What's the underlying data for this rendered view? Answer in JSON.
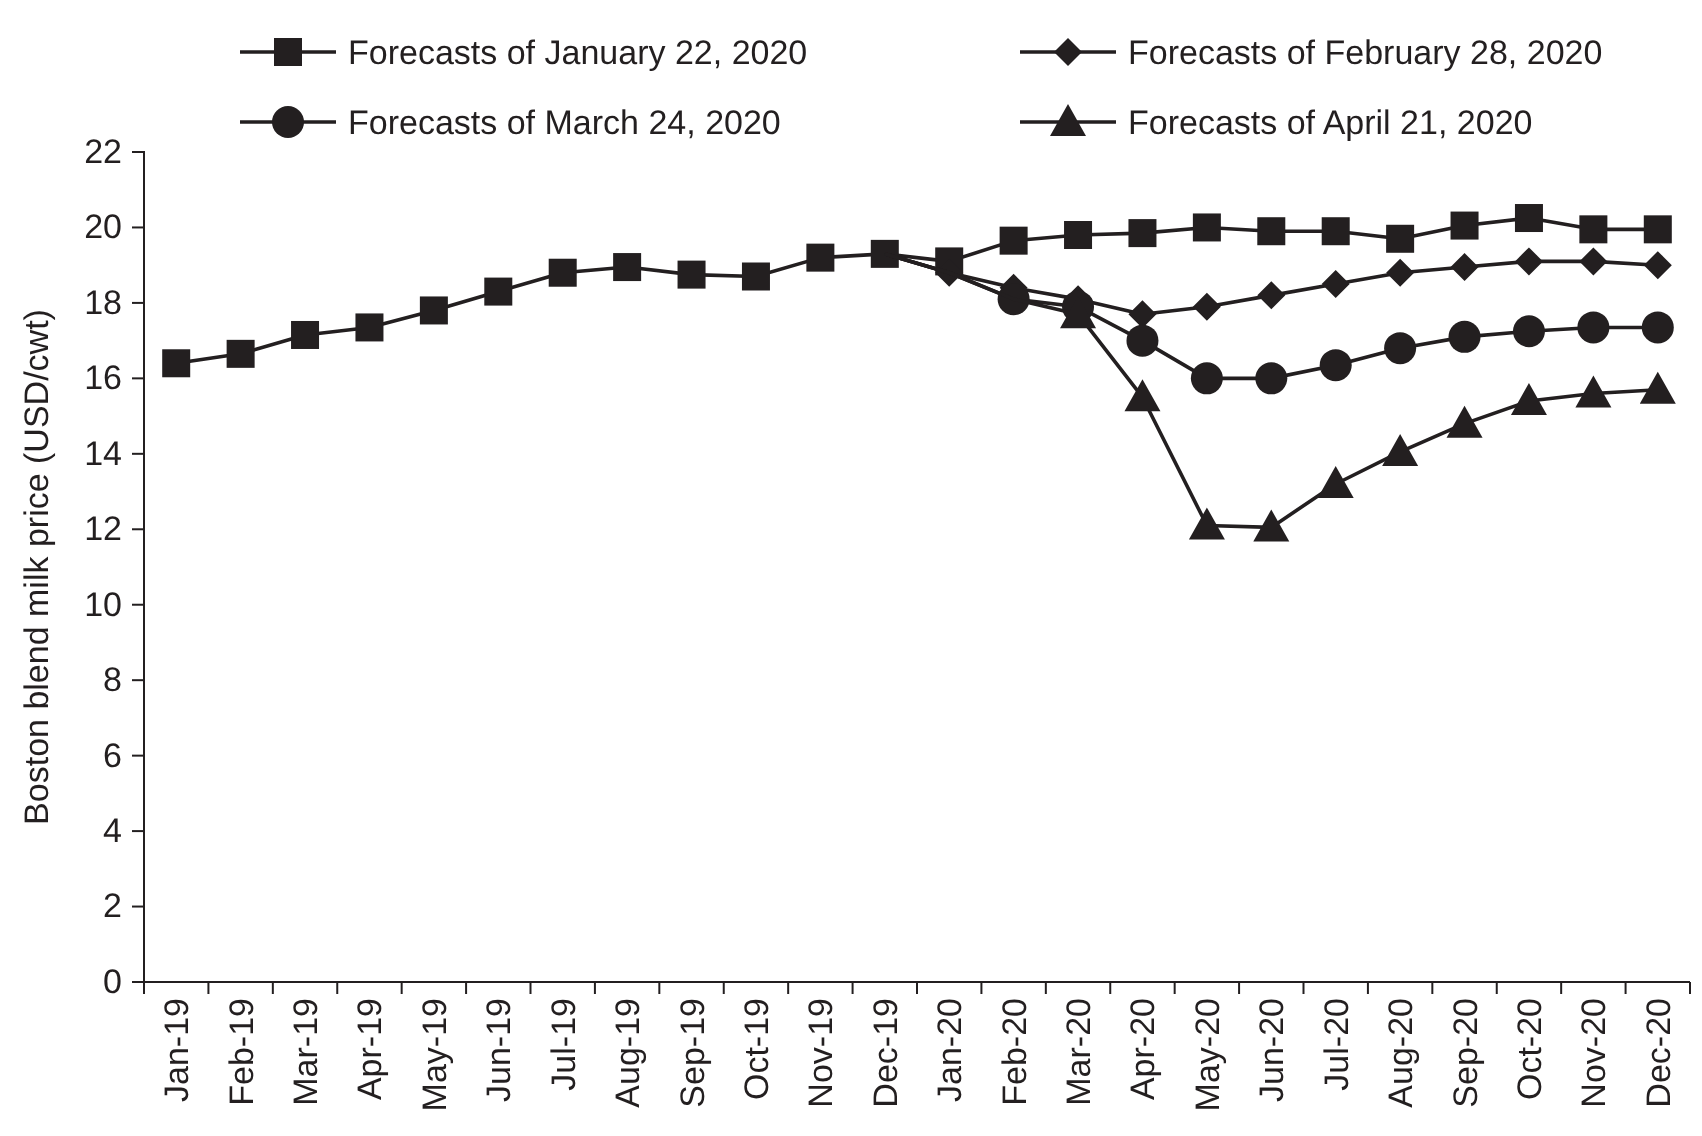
{
  "chart_data": {
    "type": "line",
    "ylabel": "Boston blend milk price (USD/cwt)",
    "categories": [
      "Jan-19",
      "Feb-19",
      "Mar-19",
      "Apr-19",
      "May-19",
      "Jun-19",
      "Jul-19",
      "Aug-19",
      "Sep-19",
      "Oct-19",
      "Nov-19",
      "Dec-19",
      "Jan-20",
      "Feb-20",
      "Mar-20",
      "Apr-20",
      "May-20",
      "Jun-20",
      "Jul-20",
      "Aug-20",
      "Sep-20",
      "Oct-20",
      "Nov-20",
      "Dec-20"
    ],
    "series": [
      {
        "name": "Forecasts of January 22, 2020",
        "color": "#231f20",
        "marker": "square",
        "values": [
          16.4,
          16.65,
          17.15,
          17.35,
          17.8,
          18.3,
          18.8,
          18.95,
          18.75,
          18.7,
          19.2,
          19.3,
          19.1,
          19.65,
          19.8,
          19.85,
          20.0,
          19.9,
          19.9,
          19.7,
          20.05,
          20.25,
          19.95,
          19.95
        ]
      },
      {
        "name": "Forecasts of February 28, 2020",
        "color": "#231f20",
        "marker": "diamond",
        "values": [
          null,
          null,
          null,
          null,
          null,
          null,
          null,
          null,
          null,
          null,
          null,
          19.3,
          18.8,
          18.4,
          18.1,
          17.7,
          17.9,
          18.2,
          18.5,
          18.8,
          18.95,
          19.1,
          19.1,
          19.0
        ]
      },
      {
        "name": "Forecasts of March 24, 2020",
        "color": "#231f20",
        "marker": "circle",
        "values": [
          null,
          null,
          null,
          null,
          null,
          null,
          null,
          null,
          null,
          null,
          null,
          19.3,
          18.8,
          18.1,
          17.9,
          17.0,
          16.0,
          16.0,
          16.35,
          16.8,
          17.1,
          17.25,
          17.35,
          17.35
        ]
      },
      {
        "name": "Forecasts of April 21, 2020",
        "color": "#231f20",
        "marker": "triangle",
        "values": [
          null,
          null,
          null,
          null,
          null,
          null,
          null,
          null,
          null,
          null,
          null,
          19.3,
          18.8,
          18.1,
          17.7,
          15.5,
          12.1,
          12.05,
          13.2,
          14.05,
          14.8,
          15.4,
          15.6,
          15.7
        ]
      }
    ],
    "ylim": [
      0,
      22
    ],
    "yticks": [
      0,
      2,
      4,
      6,
      8,
      10,
      12,
      14,
      16,
      18,
      20,
      22
    ],
    "grid": false,
    "legend": "top",
    "line_style": "solid"
  }
}
